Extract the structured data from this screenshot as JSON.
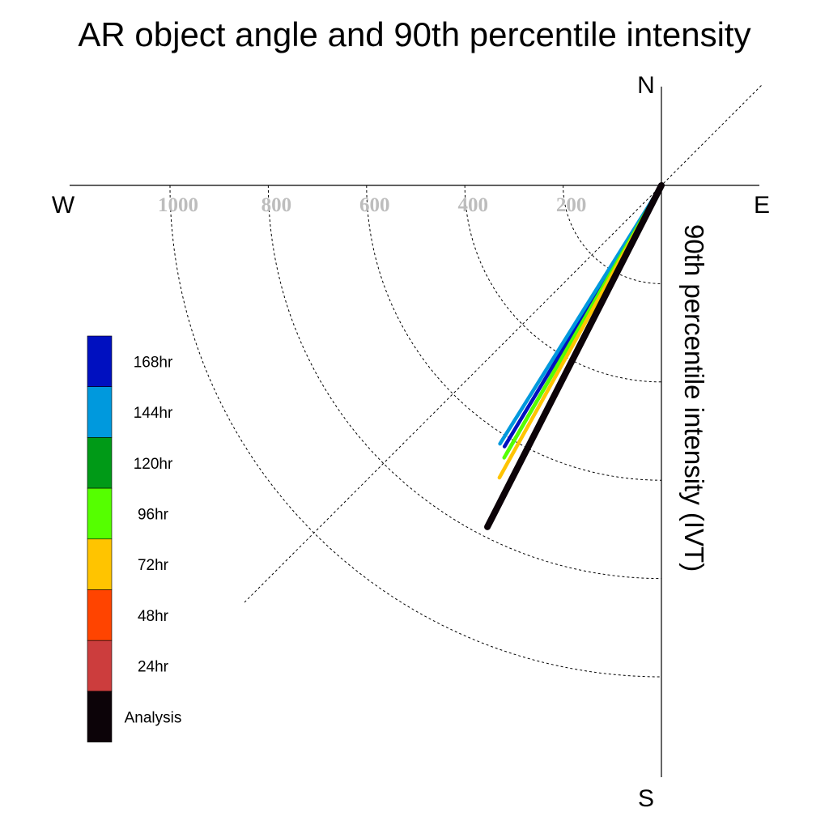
{
  "chart_data": {
    "type": "line",
    "title": "AR object angle and 90th percentile intensity",
    "ylabel": "90th percentile intensity (IVT)",
    "compass": {
      "north": "N",
      "south": "S",
      "west": "W",
      "east": "E"
    },
    "radial_ticks": [
      {
        "value": 200,
        "label": "200"
      },
      {
        "value": 400,
        "label": "400"
      },
      {
        "value": 600,
        "label": "600"
      },
      {
        "value": 800,
        "label": "800"
      },
      {
        "value": 1000,
        "label": "1000"
      }
    ],
    "rmax": 1200,
    "grid": true,
    "legend_position": "left",
    "series": [
      {
        "name": "168hr",
        "color": "#0010c0",
        "angle_deg": 211,
        "intensity": 620
      },
      {
        "name": "144hr",
        "color": "#0099dd",
        "angle_deg": 212,
        "intensity": 620
      },
      {
        "name": "120hr",
        "color": "#009a17",
        "angle_deg": 210,
        "intensity": 630
      },
      {
        "name": "96hr",
        "color": "#55ff00",
        "angle_deg": 210,
        "intensity": 640
      },
      {
        "name": "72hr",
        "color": "#ffc400",
        "angle_deg": 209,
        "intensity": 680
      },
      {
        "name": "48hr",
        "color": "#ff4400",
        "angle_deg": 207,
        "intensity": 730
      },
      {
        "name": "24hr",
        "color": "#cc3d3d",
        "angle_deg": 207,
        "intensity": 730
      },
      {
        "name": "Analysis",
        "color": "#0c0308",
        "angle_deg": 207,
        "intensity": 780
      }
    ]
  }
}
